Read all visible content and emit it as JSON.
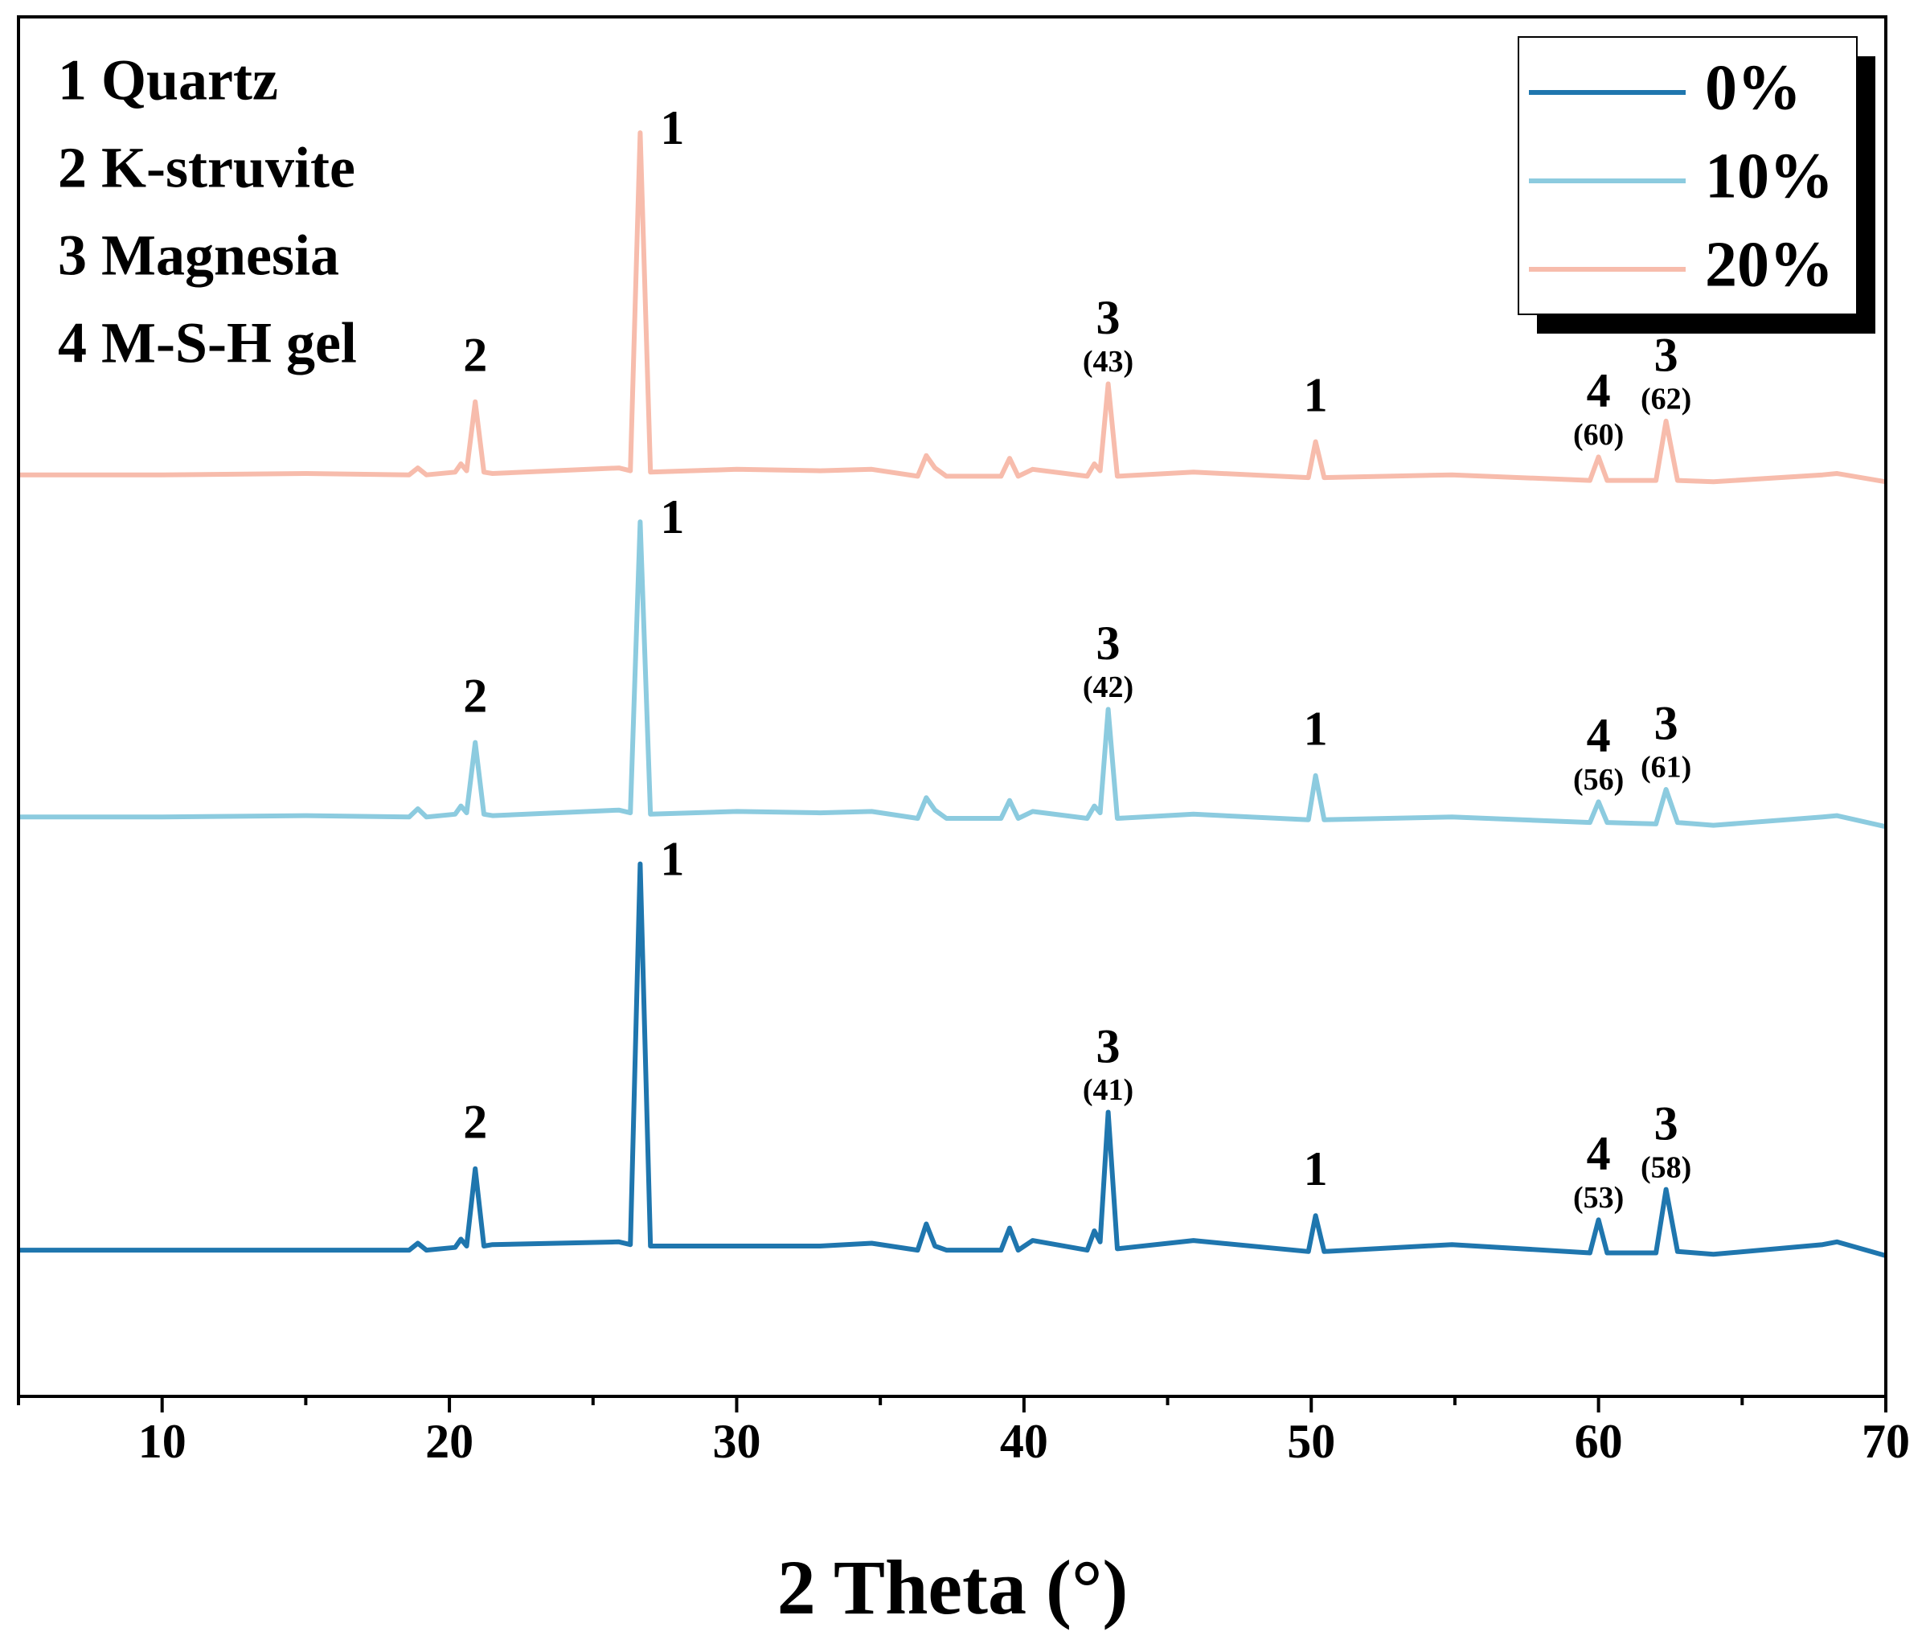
{
  "chart_data": {
    "type": "line",
    "x_label": "2 Theta (°)",
    "x": [
      5,
      10,
      15,
      18.6,
      18.9,
      19.2,
      20.2,
      20.4,
      20.6,
      20.9,
      21.2,
      21.5,
      25.9,
      26.3,
      26.64,
      27.0,
      30.0,
      32.9,
      34.7,
      36.3,
      36.6,
      36.9,
      37.3,
      39.2,
      39.5,
      39.8,
      40.3,
      42.2,
      42.45,
      42.65,
      42.93,
      43.25,
      45.9,
      49.9,
      50.15,
      50.45,
      54.9,
      59.7,
      60.0,
      60.3,
      62.0,
      62.35,
      62.75,
      64.0,
      67.8,
      68.3,
      70
    ],
    "series": [
      {
        "name": "0%",
        "color": "#1f76ae",
        "values": [
          10.6,
          10.6,
          10.6,
          10.6,
          11.1,
          10.6,
          10.8,
          11.4,
          10.9,
          16.5,
          10.9,
          11.0,
          11.2,
          11.0,
          38.6,
          10.9,
          10.9,
          10.9,
          11.1,
          10.6,
          12.5,
          10.9,
          10.6,
          10.6,
          12.2,
          10.6,
          11.3,
          10.6,
          12.0,
          11.2,
          20.6,
          10.7,
          11.3,
          10.5,
          13.1,
          10.5,
          11.0,
          10.4,
          12.8,
          10.4,
          10.4,
          15.0,
          10.5,
          10.3,
          11.0,
          11.2,
          10.2
        ],
        "annotations": [
          {
            "x": 20.9,
            "label": "2"
          },
          {
            "x": 26.64,
            "label": "1"
          },
          {
            "x": 42.93,
            "label": "3",
            "note": "(41)"
          },
          {
            "x": 50.15,
            "label": "1"
          },
          {
            "x": 60.0,
            "label": "4",
            "note": "(53)"
          },
          {
            "x": 62.35,
            "label": "3",
            "note": "(58)"
          }
        ]
      },
      {
        "name": "10%",
        "color": "#8ccbdf",
        "values": [
          42.0,
          42.0,
          42.1,
          42.0,
          42.6,
          42.0,
          42.2,
          42.8,
          42.3,
          47.4,
          42.2,
          42.1,
          42.5,
          42.3,
          63.4,
          42.2,
          42.4,
          42.3,
          42.4,
          41.9,
          43.4,
          42.5,
          41.9,
          41.9,
          43.2,
          41.9,
          42.4,
          41.9,
          42.8,
          42.3,
          49.8,
          41.9,
          42.2,
          41.8,
          45.0,
          41.8,
          42.0,
          41.6,
          43.1,
          41.6,
          41.5,
          44.0,
          41.6,
          41.4,
          42.0,
          42.1,
          41.3
        ],
        "annotations": [
          {
            "x": 20.9,
            "label": "2"
          },
          {
            "x": 26.64,
            "label": "1"
          },
          {
            "x": 42.93,
            "label": "3",
            "note": "(42)"
          },
          {
            "x": 50.15,
            "label": "1"
          },
          {
            "x": 60.0,
            "label": "4",
            "note": "(56)"
          },
          {
            "x": 62.35,
            "label": "3",
            "note": "(61)"
          }
        ]
      },
      {
        "name": "20%",
        "color": "#f7bcac",
        "values": [
          66.8,
          66.8,
          66.9,
          66.8,
          67.3,
          66.8,
          67.0,
          67.6,
          67.1,
          72.1,
          67.0,
          66.9,
          67.3,
          67.1,
          91.6,
          67.0,
          67.2,
          67.1,
          67.2,
          66.7,
          68.2,
          67.3,
          66.7,
          66.7,
          68.0,
          66.7,
          67.2,
          66.7,
          67.6,
          67.1,
          73.4,
          66.7,
          67.0,
          66.6,
          69.2,
          66.6,
          66.8,
          66.4,
          68.1,
          66.4,
          66.4,
          70.7,
          66.4,
          66.3,
          66.8,
          66.9,
          66.3
        ],
        "annotations": [
          {
            "x": 20.9,
            "label": "2"
          },
          {
            "x": 26.64,
            "label": "1"
          },
          {
            "x": 42.93,
            "label": "3",
            "note": "(43)"
          },
          {
            "x": 50.15,
            "label": "1"
          },
          {
            "x": 60.0,
            "label": "4",
            "note": "(60)"
          },
          {
            "x": 62.35,
            "label": "3",
            "note": "(62)"
          }
        ]
      }
    ],
    "phase_legend": [
      "1 Quartz",
      "2 K-struvite",
      "3 Magnesia",
      "4 M-S-H gel"
    ],
    "xlim": [
      5,
      70
    ],
    "xticks": [
      10,
      20,
      30,
      40,
      50,
      60,
      70
    ],
    "xminorticks": [
      5,
      15,
      25,
      35,
      45,
      55,
      65
    ],
    "ylim": [
      0,
      100
    ],
    "note_color": "#1414e6",
    "legend": "upper right"
  }
}
